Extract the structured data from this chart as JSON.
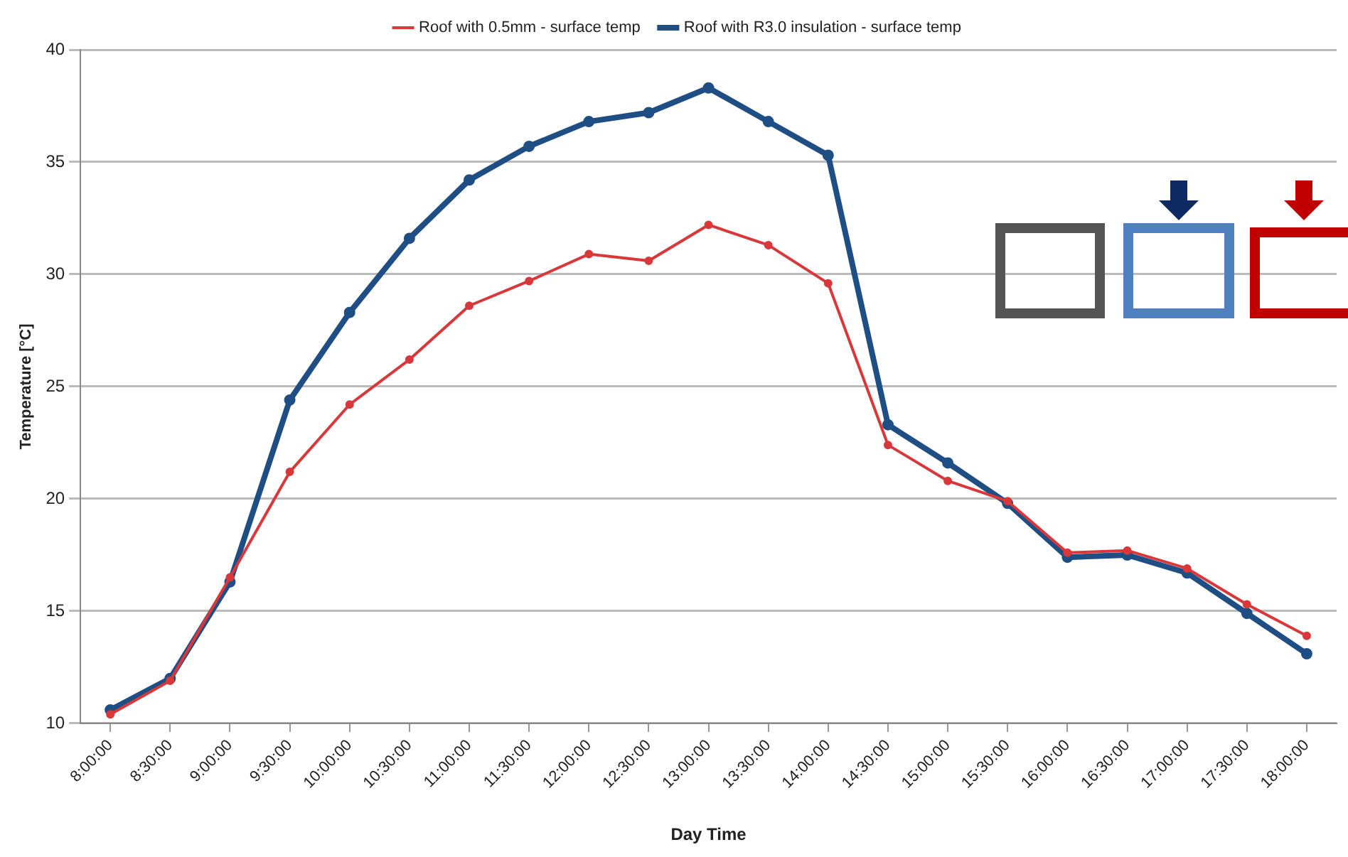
{
  "chart_data": {
    "type": "line",
    "xlabel": "Day Time",
    "ylabel": "Temperature [°C]",
    "categories": [
      "8:00:00",
      "8:30:00",
      "9:00:00",
      "9:30:00",
      "10:00:00",
      "10:30:00",
      "11:00:00",
      "11:30:00",
      "12:00:00",
      "12:30:00",
      "13:00:00",
      "13:30:00",
      "14:00:00",
      "14:30:00",
      "15:00:00",
      "15:30:00",
      "16:00:00",
      "16:30:00",
      "17:00:00",
      "17:30:00",
      "18:00:00"
    ],
    "series": [
      {
        "name": "Roof with R3.0 insulation - surface temp",
        "color": "#1f4e85",
        "values": [
          10.6,
          12.0,
          16.3,
          24.4,
          28.3,
          31.6,
          34.2,
          35.7,
          36.8,
          37.2,
          38.3,
          36.8,
          35.3,
          23.3,
          21.6,
          19.8,
          17.4,
          17.5,
          16.7,
          14.9,
          13.1
        ]
      },
      {
        "name": "Roof with 0.5mm - surface temp",
        "color": "#d9383a",
        "values": [
          10.4,
          11.9,
          16.5,
          21.2,
          24.2,
          26.2,
          28.6,
          29.7,
          30.9,
          30.6,
          32.2,
          31.3,
          29.6,
          22.4,
          20.8,
          19.9,
          17.6,
          17.7,
          16.9,
          15.3,
          13.9
        ]
      }
    ],
    "ylim": [
      10,
      40
    ],
    "yticks": [
      10,
      15,
      20,
      25,
      30,
      35,
      40
    ],
    "grid": "y",
    "legend": "top",
    "marker": "circle",
    "line_style": "solid"
  }
}
